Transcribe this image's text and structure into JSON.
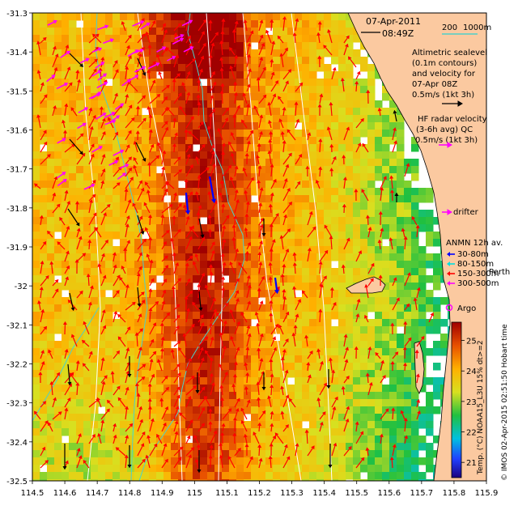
{
  "header": {
    "date": "07-Apr-2011",
    "time": "08:49Z"
  },
  "scale": {
    "labels": [
      "200",
      "1000m"
    ]
  },
  "sealevel_legend": [
    "Altimetric sealevel",
    "(0.1m contours)",
    "and velocity for",
    "07-Apr 08Z",
    "0.5m/s (1kt 3h)"
  ],
  "hf_legend": [
    "HF radar velocity",
    "(3-6h avg) QC",
    "0.5m/s (1kt 3h)"
  ],
  "drifter_label": "drifter",
  "anmn": {
    "title": "ANMN 12h av.",
    "items": [
      "30-80m",
      "80-150m",
      "150-300m",
      "300-500m"
    ]
  },
  "place_label": "Perth",
  "argo_label": "Argo",
  "colorbar": {
    "title": "Temp. (°C) NOAA15_L3U 15% dt>=2",
    "ticks": [
      "21",
      "22",
      "23",
      "24",
      "25"
    ],
    "min": 20.5,
    "max": 25.6
  },
  "credit": "© IMOS 02-Apr-2015 02:51:50 Hobart time",
  "map": {
    "lon_range": [
      114.5,
      115.9
    ],
    "lat_range": [
      -32.5,
      -31.3
    ],
    "x_ticks": [
      "114.5",
      "114.6",
      "114.7",
      "114.8",
      "114.9",
      "115",
      "115.1",
      "115.2",
      "115.3",
      "115.4",
      "115.5",
      "115.6",
      "115.7",
      "115.8",
      "115.9"
    ],
    "y_ticks": [
      "-31.3",
      "-31.4",
      "-31.5",
      "-31.6",
      "-31.7",
      "-31.8",
      "-31.9",
      "-32",
      "-32.1",
      "-32.2",
      "-32.3",
      "-32.4",
      "-32.5"
    ],
    "colors": {
      "land": "#fbc9a0",
      "no_data": "#ffffff",
      "isobath": "#4fd0c8",
      "sealevel_contour": "#ffffff",
      "hf_arrow": "#ff0000",
      "altimetry_arrow": "#000000",
      "drifter": "#ff00ff",
      "anmn": [
        "#0000ff",
        "#00e0e0",
        "#ff0000",
        "#ff00ff"
      ]
    }
  }
}
